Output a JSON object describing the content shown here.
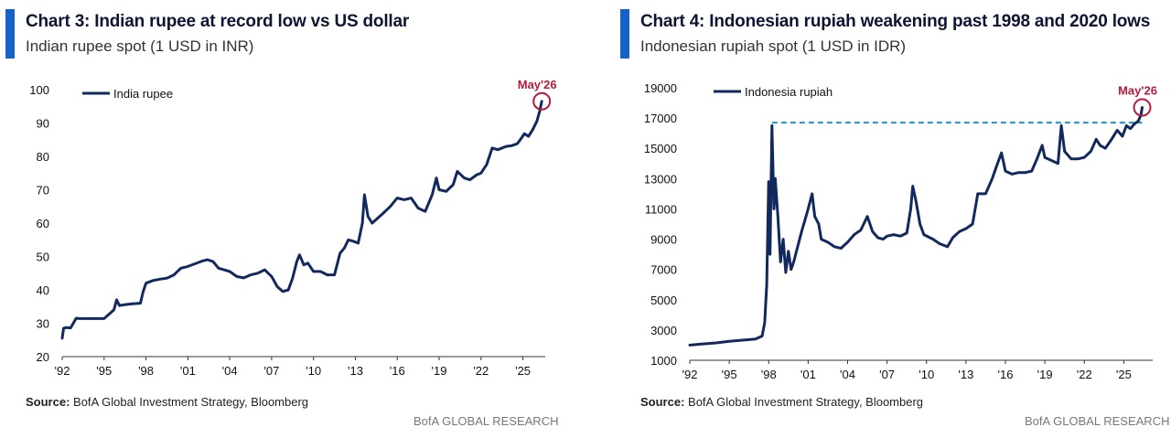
{
  "charts": [
    {
      "title": "Chart 3: Indian rupee at record low vs US dollar",
      "subtitle": "Indian rupee spot (1 USD in INR)",
      "source_label": "Source:",
      "source_text": "BofA Global Investment Strategy, Bloomberg",
      "brand": "BofA GLOBAL RESEARCH",
      "colors": {
        "line": "#13295e",
        "accent": "#1663c7",
        "annotation": "#b01c3d"
      }
    },
    {
      "title": "Chart 4: Indonesian rupiah weakening past 1998 and 2020 lows",
      "subtitle": "Indonesian rupiah spot (1 USD in IDR)",
      "source_label": "Source:",
      "source_text": "BofA Global Investment Strategy, Bloomberg",
      "brand": "BofA GLOBAL RESEARCH",
      "colors": {
        "line": "#13295e",
        "accent": "#1663c7",
        "annotation": "#b01c3d",
        "reference": "#1f8fd6"
      }
    }
  ],
  "chart_data": [
    {
      "type": "line",
      "title": "Chart 3: Indian rupee at record low vs US dollar",
      "subtitle": "Indian rupee spot (1 USD in INR)",
      "xlabel": "",
      "ylabel": "",
      "xlim": [
        1992,
        2026.6
      ],
      "ylim": [
        20,
        100
      ],
      "x_ticks": [
        1992,
        1995,
        1998,
        2001,
        2004,
        2007,
        2010,
        2013,
        2016,
        2019,
        2022,
        2025
      ],
      "x_tick_labels": [
        "'92",
        "'95",
        "'98",
        "'01",
        "'04",
        "'07",
        "'10",
        "'13",
        "'16",
        "'19",
        "'22",
        "'25"
      ],
      "y_ticks": [
        20,
        30,
        40,
        50,
        60,
        70,
        80,
        90,
        100
      ],
      "grid": false,
      "legend_position": "top-left",
      "series": [
        {
          "name": "India rupee",
          "x": [
            1992.0,
            1992.1,
            1992.3,
            1992.6,
            1993.0,
            1993.2,
            1993.4,
            1994.0,
            1995.0,
            1995.7,
            1995.9,
            1996.1,
            1996.4,
            1997.0,
            1997.6,
            1997.8,
            1998.0,
            1998.5,
            1999.0,
            1999.5,
            2000.0,
            2000.5,
            2001.0,
            2001.5,
            2002.0,
            2002.4,
            2002.8,
            2003.2,
            2003.6,
            2004.0,
            2004.5,
            2005.0,
            2005.5,
            2006.0,
            2006.5,
            2007.0,
            2007.4,
            2007.8,
            2008.2,
            2008.5,
            2008.8,
            2009.0,
            2009.3,
            2009.6,
            2010.0,
            2010.5,
            2011.0,
            2011.5,
            2011.9,
            2012.2,
            2012.5,
            2012.9,
            2013.2,
            2013.5,
            2013.65,
            2013.9,
            2014.2,
            2014.6,
            2015.0,
            2015.5,
            2016.0,
            2016.5,
            2017.0,
            2017.5,
            2018.0,
            2018.5,
            2018.8,
            2019.0,
            2019.5,
            2020.0,
            2020.3,
            2020.8,
            2021.2,
            2021.7,
            2022.0,
            2022.4,
            2022.8,
            2023.2,
            2023.8,
            2024.2,
            2024.6,
            2024.9,
            2025.1,
            2025.4,
            2025.7,
            2026.0,
            2026.2,
            2026.35
          ],
          "values": [
            25.5,
            28.5,
            28.7,
            28.6,
            31.5,
            31.4,
            31.4,
            31.4,
            31.4,
            34.0,
            37.0,
            35.3,
            35.5,
            35.8,
            36.0,
            39.5,
            42.0,
            42.8,
            43.2,
            43.5,
            44.5,
            46.5,
            47.0,
            47.8,
            48.6,
            49.0,
            48.5,
            46.5,
            46.0,
            45.5,
            44.0,
            43.6,
            44.5,
            45.0,
            46.0,
            44.0,
            41.0,
            39.5,
            40.0,
            43.5,
            48.5,
            50.5,
            47.5,
            48.0,
            45.5,
            45.5,
            44.5,
            44.5,
            51.0,
            52.5,
            55.0,
            54.5,
            54.0,
            60.0,
            68.5,
            62.0,
            60.0,
            61.5,
            63.0,
            65.0,
            67.5,
            67.0,
            67.5,
            64.5,
            63.5,
            68.5,
            73.5,
            70.0,
            69.5,
            71.5,
            75.5,
            73.5,
            73.0,
            74.5,
            75.0,
            77.5,
            82.5,
            82.0,
            83.0,
            83.2,
            83.8,
            85.5,
            86.8,
            86.0,
            88.0,
            90.5,
            93.5,
            96.5
          ]
        }
      ],
      "annotations": [
        {
          "text": "May'26",
          "x": 2026.35,
          "y": 96.5
        }
      ]
    },
    {
      "type": "line",
      "title": "Chart 4: Indonesian rupiah weakening past 1998 and 2020 lows",
      "subtitle": "Indonesian rupiah spot (1 USD in IDR)",
      "xlabel": "",
      "ylabel": "",
      "xlim": [
        1992,
        2027.2
      ],
      "ylim": [
        1000,
        19000
      ],
      "x_ticks": [
        1992,
        1995,
        1998,
        2001,
        2004,
        2007,
        2010,
        2013,
        2016,
        2019,
        2022,
        2025
      ],
      "x_tick_labels": [
        "'92",
        "'95",
        "'98",
        "'01",
        "'04",
        "'07",
        "'10",
        "'13",
        "'16",
        "'19",
        "'22",
        "'25"
      ],
      "y_ticks": [
        1000,
        3000,
        5000,
        7000,
        9000,
        11000,
        13000,
        15000,
        17000,
        19000
      ],
      "grid": false,
      "legend_position": "top-left",
      "series": [
        {
          "name": "Indonesia rupiah",
          "x": [
            1992.0,
            1993.0,
            1994.0,
            1995.0,
            1996.0,
            1997.0,
            1997.5,
            1997.7,
            1997.85,
            1998.0,
            1998.1,
            1998.25,
            1998.4,
            1998.5,
            1998.7,
            1998.9,
            1999.1,
            1999.3,
            1999.5,
            1999.7,
            1999.9,
            2000.2,
            2000.5,
            2001.0,
            2001.3,
            2001.5,
            2001.8,
            2002.0,
            2002.5,
            2003.0,
            2003.5,
            2004.0,
            2004.5,
            2005.0,
            2005.5,
            2005.9,
            2006.3,
            2006.7,
            2007.0,
            2007.5,
            2008.0,
            2008.5,
            2008.8,
            2008.95,
            2009.2,
            2009.5,
            2009.8,
            2010.5,
            2011.0,
            2011.6,
            2012.0,
            2012.5,
            2013.0,
            2013.5,
            2013.9,
            2014.5,
            2015.0,
            2015.4,
            2015.7,
            2016.0,
            2016.5,
            2017.0,
            2017.5,
            2018.0,
            2018.4,
            2018.8,
            2019.0,
            2019.5,
            2020.0,
            2020.25,
            2020.5,
            2021.0,
            2021.5,
            2022.0,
            2022.5,
            2022.9,
            2023.2,
            2023.6,
            2024.0,
            2024.5,
            2024.9,
            2025.2,
            2025.5,
            2025.8,
            2026.1,
            2026.3,
            2026.4
          ],
          "values": [
            2000,
            2080,
            2150,
            2250,
            2330,
            2400,
            2600,
            3500,
            6000,
            12800,
            8000,
            16500,
            11000,
            13000,
            10500,
            7500,
            9000,
            6800,
            8200,
            7000,
            7500,
            8500,
            9500,
            11000,
            12000,
            10500,
            10000,
            9000,
            8800,
            8500,
            8400,
            8800,
            9300,
            9600,
            10500,
            9500,
            9100,
            9000,
            9200,
            9300,
            9200,
            9400,
            11000,
            12500,
            11500,
            10000,
            9300,
            9000,
            8700,
            8500,
            9100,
            9500,
            9700,
            10000,
            12000,
            12000,
            13000,
            14000,
            14700,
            13500,
            13300,
            13400,
            13400,
            13500,
            14300,
            15200,
            14400,
            14200,
            14000,
            16500,
            14800,
            14300,
            14300,
            14400,
            14800,
            15600,
            15200,
            15000,
            15500,
            16200,
            15800,
            16500,
            16300,
            16600,
            16800,
            17200,
            17700
          ]
        }
      ],
      "reference_line": {
        "y": 16700,
        "x_from": 1998.25,
        "x_to": 2026.4
      },
      "annotations": [
        {
          "text": "May'26",
          "x": 2026.4,
          "y": 17700
        }
      ]
    }
  ]
}
